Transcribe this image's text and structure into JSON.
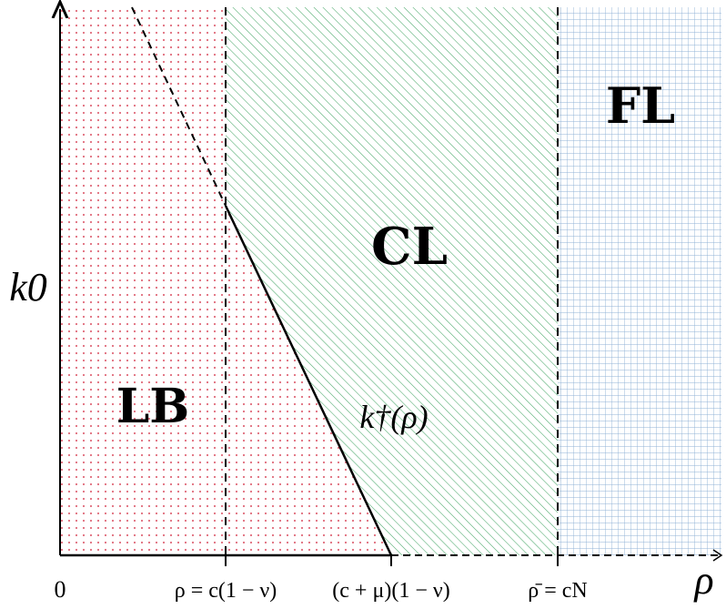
{
  "regions": {
    "lb": {
      "label": "LB",
      "color": "#e06b7a"
    },
    "cl": {
      "label": "CL",
      "color": "#4aa86a"
    },
    "fl": {
      "label": "FL",
      "color": "#7aa0cc"
    }
  },
  "axes": {
    "y_label": "k0",
    "x_label": "ρ",
    "origin": "0"
  },
  "ticks": {
    "rho_under": "ρ = c(1 − ν)",
    "c_mu": "(c + μ)(1 − ν)",
    "rho_bar": "ρ̄ = cN"
  },
  "curve_label": "k†(ρ)"
}
